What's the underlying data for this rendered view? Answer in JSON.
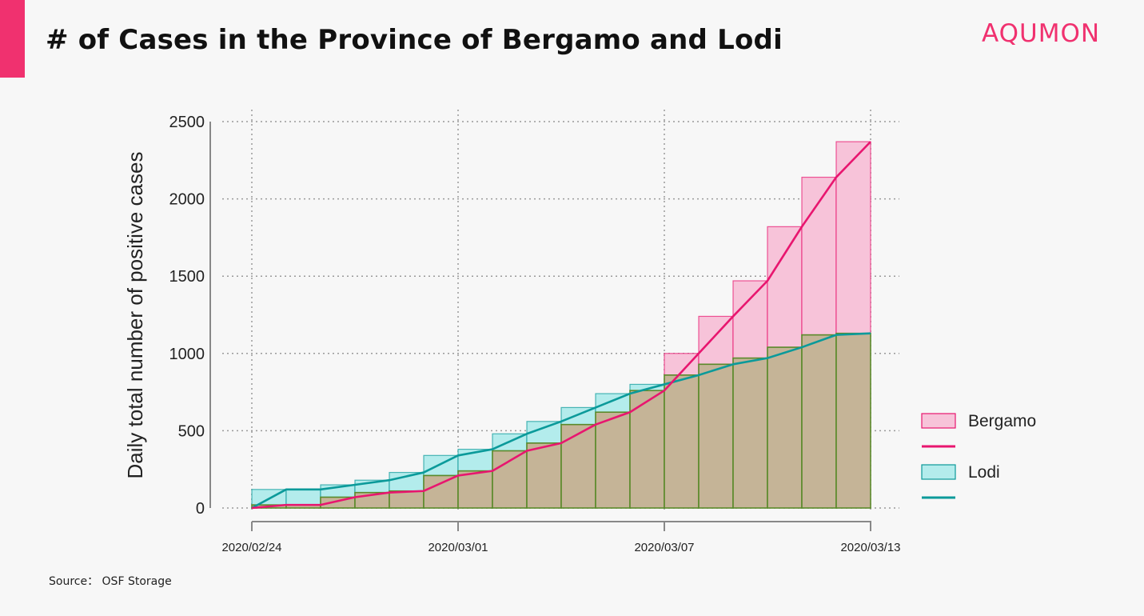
{
  "header": {
    "title": "# of Cases in the Province of Bergamo and Lodi",
    "brand": "AQUMON"
  },
  "footer": {
    "source": "Source： OSF Storage"
  },
  "colors": {
    "accent": "#f0316f",
    "bergamo_fill": "#f7c3d9",
    "bergamo_line": "#e8166f",
    "lodi_fill": "#b3ecec",
    "lodi_line": "#0b9a9a",
    "overlap_fill": "#c5b497",
    "overlap_edge": "#5a8a2a"
  },
  "chart_data": {
    "type": "bar",
    "title": "",
    "xlabel": "",
    "ylabel": "Daily total number of positive cases",
    "ylim": [
      0,
      2500
    ],
    "yticks": [
      0,
      500,
      1000,
      1500,
      2000,
      2500
    ],
    "xtick_labels": [
      "2020/02/24",
      "2020/03/01",
      "2020/03/07",
      "2020/03/13"
    ],
    "grid": true,
    "legend_position": "right",
    "x": [
      "2020/02/24",
      "2020/02/25",
      "2020/02/26",
      "2020/02/27",
      "2020/02/28",
      "2020/02/29",
      "2020/03/01",
      "2020/03/02",
      "2020/03/03",
      "2020/03/04",
      "2020/03/05",
      "2020/03/06",
      "2020/03/07",
      "2020/03/08",
      "2020/03/09",
      "2020/03/10",
      "2020/03/11",
      "2020/03/12",
      "2020/03/13"
    ],
    "series": [
      {
        "name": "Bergamo",
        "values": [
          0,
          20,
          20,
          70,
          100,
          110,
          210,
          240,
          370,
          420,
          540,
          620,
          760,
          1000,
          1240,
          1470,
          1820,
          2140,
          2370
        ]
      },
      {
        "name": "Lodi",
        "values": [
          0,
          120,
          120,
          150,
          180,
          230,
          340,
          380,
          480,
          560,
          650,
          740,
          800,
          860,
          930,
          970,
          1040,
          1120,
          1130
        ]
      }
    ]
  }
}
